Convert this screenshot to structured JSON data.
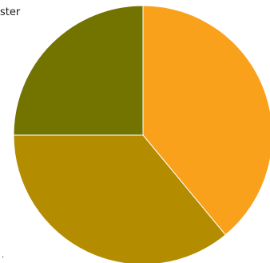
{
  "legend": {
    "partial_label": "ster",
    "bottom_mark": "·"
  },
  "chart_data": {
    "type": "pie",
    "start_angle_deg": 0,
    "direction": "clockwise",
    "slices": [
      {
        "value": 39,
        "color": "#f9a11b"
      },
      {
        "value": 36,
        "color": "#b38c00"
      },
      {
        "value": 25,
        "color": "#737300"
      }
    ]
  }
}
